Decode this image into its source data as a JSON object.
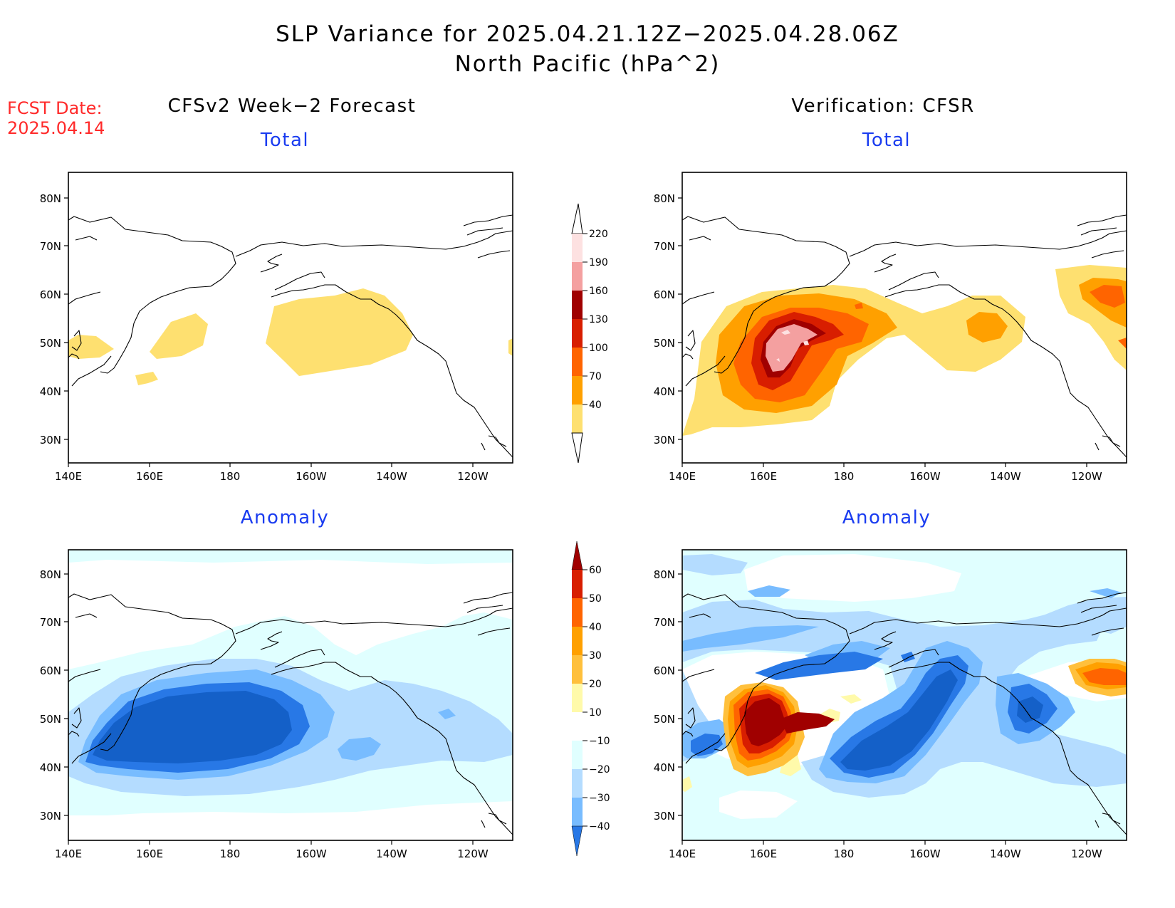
{
  "title": {
    "line1": "SLP Variance for 2025.04.21.12Z−2025.04.28.06Z",
    "line2": "North Pacific (hPa^2)"
  },
  "forecast_date": {
    "label": "FCST Date:",
    "value": "2025.04.14"
  },
  "columns": {
    "left": "CFSv2 Week−2 Forecast",
    "right": "Verification: CFSR"
  },
  "panels": {
    "forecast_total": "Total",
    "verification_total": "Total",
    "forecast_anomaly": "Anomaly",
    "verification_anomaly": "Anomaly"
  },
  "axes": {
    "x_ticks": [
      "140E",
      "160E",
      "180",
      "160W",
      "140W",
      "120W"
    ],
    "y_ticks": [
      "80N",
      "70N",
      "60N",
      "50N",
      "40N",
      "30N"
    ]
  },
  "colorbars": {
    "total": {
      "labels": [
        "220",
        "190",
        "160",
        "130",
        "100",
        "70",
        "40"
      ],
      "colors": [
        "#fde1e1",
        "#f4a0a0",
        "#a00000",
        "#d81e00",
        "#ff6400",
        "#ffa000",
        "#fee070"
      ]
    },
    "anomaly": {
      "labels": [
        "60",
        "50",
        "40",
        "30",
        "20",
        "10",
        "−10",
        "−20",
        "−30",
        "−40"
      ],
      "colors": [
        "#a00000",
        "#d81e00",
        "#ff6400",
        "#ffa000",
        "#ffc03c",
        "#fffaaa",
        "#ffffff",
        "#e0ffff",
        "#b4dcff",
        "#78bcff",
        "#2878e6",
        "#1460c8"
      ]
    }
  }
}
